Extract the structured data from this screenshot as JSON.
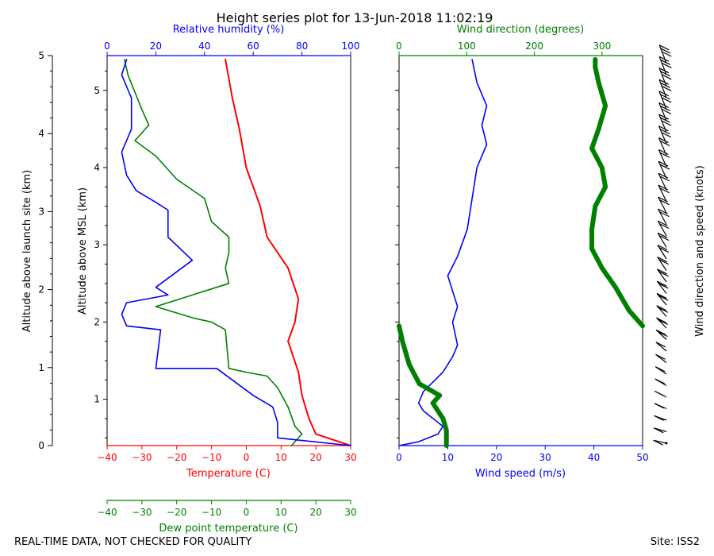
{
  "title": "Height series plot for 13-Jun-2018 11:02:19",
  "footer_left": "REAL-TIME DATA, NOT CHECKED FOR QUALITY",
  "footer_right": "Site: ISS2",
  "colors": {
    "temperature": "#ff0000",
    "rh": "#0000ff",
    "dewpoint": "#008000",
    "wspd": "#0000ff",
    "wdir": "#008000",
    "axis": "#000000"
  },
  "chart_data": [
    {
      "type": "line",
      "name": "thermo-panel",
      "ylabel_outer": "Altitude above launch site (km)",
      "ylabel_inner": "Altitude above MSL (km)",
      "outer_yticks": [
        "0",
        "1",
        "2",
        "3",
        "4",
        "5"
      ],
      "inner_yticks": [
        "1",
        "2",
        "3",
        "4",
        "5"
      ],
      "ylim_msl": [
        0.4,
        5.45
      ],
      "x_bottom": {
        "label": "Temperature (C)",
        "range": [
          -40,
          30
        ],
        "ticks": [
          "−40",
          "−30",
          "−20",
          "−10",
          "0",
          "10",
          "20",
          "30"
        ]
      },
      "x_bottom2": {
        "label": "Dew point temperature (C)",
        "range": [
          -40,
          30
        ],
        "ticks": [
          "−40",
          "−30",
          "−20",
          "−10",
          "0",
          "10",
          "20",
          "30"
        ]
      },
      "x_top": {
        "label": "Relative humidity (%)",
        "range": [
          0,
          100
        ],
        "ticks": [
          "0",
          "20",
          "40",
          "60",
          "80",
          "100"
        ]
      },
      "series": [
        {
          "name": "Temperature",
          "axis": "x_bottom",
          "color": "#ff0000",
          "points": [
            [
              30,
              0.4
            ],
            [
              20,
              0.55
            ],
            [
              18,
              0.75
            ],
            [
              16,
              1.05
            ],
            [
              15,
              1.35
            ],
            [
              12,
              1.75
            ],
            [
              14,
              2.0
            ],
            [
              15,
              2.3
            ],
            [
              12,
              2.7
            ],
            [
              6,
              3.1
            ],
            [
              4,
              3.5
            ],
            [
              0,
              4.0
            ],
            [
              -2,
              4.5
            ],
            [
              -4,
              4.9
            ],
            [
              -6,
              5.4
            ]
          ]
        },
        {
          "name": "Dew point",
          "axis": "x_bottom2",
          "color": "#008000",
          "points": [
            [
              13,
              0.4
            ],
            [
              16,
              0.55
            ],
            [
              14,
              0.65
            ],
            [
              12,
              0.9
            ],
            [
              9,
              1.15
            ],
            [
              6,
              1.3
            ],
            [
              0,
              1.35
            ],
            [
              -5,
              1.4
            ],
            [
              -6,
              1.9
            ],
            [
              -10,
              2.0
            ],
            [
              -15,
              2.05
            ],
            [
              -26,
              2.2
            ],
            [
              -5,
              2.5
            ],
            [
              -6,
              2.7
            ],
            [
              -5,
              2.9
            ],
            [
              -5,
              3.1
            ],
            [
              -10,
              3.3
            ],
            [
              -12,
              3.6
            ],
            [
              -20,
              3.85
            ],
            [
              -26,
              4.15
            ],
            [
              -32,
              4.35
            ],
            [
              -28,
              4.55
            ],
            [
              -30,
              4.75
            ],
            [
              -34,
              5.2
            ],
            [
              -35,
              5.4
            ]
          ]
        },
        {
          "name": "Relative humidity",
          "axis": "x_top",
          "color": "#0000ff",
          "points": [
            [
              100,
              0.4
            ],
            [
              70,
              0.5
            ],
            [
              70,
              0.7
            ],
            [
              68,
              0.9
            ],
            [
              60,
              1.05
            ],
            [
              45,
              1.4
            ],
            [
              20,
              1.4
            ],
            [
              22,
              1.9
            ],
            [
              8,
              1.95
            ],
            [
              6,
              2.1
            ],
            [
              8,
              2.25
            ],
            [
              25,
              2.35
            ],
            [
              20,
              2.45
            ],
            [
              35,
              2.8
            ],
            [
              25,
              3.1
            ],
            [
              25,
              3.45
            ],
            [
              20,
              3.55
            ],
            [
              12,
              3.7
            ],
            [
              8,
              3.9
            ],
            [
              6,
              4.2
            ],
            [
              10,
              4.5
            ],
            [
              10,
              4.9
            ],
            [
              6,
              5.2
            ],
            [
              8,
              5.4
            ]
          ]
        }
      ]
    },
    {
      "type": "line",
      "name": "wind-panel",
      "x_bottom": {
        "label": "Wind speed (m/s)",
        "range": [
          0,
          50
        ],
        "ticks": [
          "0",
          "10",
          "20",
          "30",
          "40",
          "50"
        ]
      },
      "x_top": {
        "label": "Wind direction (degrees)",
        "range": [
          0,
          360
        ],
        "ticks": [
          "0",
          "100",
          "200",
          "300"
        ]
      },
      "series": [
        {
          "name": "Wind speed",
          "axis": "x_bottom",
          "color": "#0000ff",
          "points": [
            [
              0,
              0.4
            ],
            [
              4,
              0.45
            ],
            [
              8,
              0.55
            ],
            [
              9,
              0.65
            ],
            [
              7,
              0.75
            ],
            [
              5,
              0.85
            ],
            [
              4,
              0.95
            ],
            [
              5,
              1.1
            ],
            [
              9,
              1.35
            ],
            [
              11,
              1.55
            ],
            [
              12,
              1.7
            ],
            [
              11,
              2.0
            ],
            [
              12,
              2.2
            ],
            [
              11,
              2.4
            ],
            [
              10,
              2.6
            ],
            [
              12,
              2.85
            ],
            [
              14,
              3.2
            ],
            [
              15,
              3.6
            ],
            [
              16,
              4.0
            ],
            [
              18,
              4.3
            ],
            [
              17,
              4.55
            ],
            [
              18,
              4.8
            ],
            [
              16,
              5.1
            ],
            [
              15,
              5.4
            ]
          ]
        },
        {
          "name": "Wind direction",
          "axis": "x_top",
          "color": "#008000",
          "points": [
            [
              70,
              0.4
            ],
            [
              70,
              0.6
            ],
            [
              65,
              0.75
            ],
            [
              50,
              0.95
            ],
            [
              60,
              1.05
            ],
            [
              30,
              1.2
            ],
            [
              15,
              1.45
            ],
            [
              5,
              1.75
            ],
            [
              0,
              1.95
            ],
            [
              360,
              1.95
            ],
            [
              340,
              2.15
            ],
            [
              320,
              2.45
            ],
            [
              300,
              2.7
            ],
            [
              285,
              2.95
            ],
            [
              285,
              3.2
            ],
            [
              290,
              3.5
            ],
            [
              305,
              3.75
            ],
            [
              300,
              4.0
            ],
            [
              285,
              4.25
            ],
            [
              295,
              4.5
            ],
            [
              305,
              4.8
            ],
            [
              295,
              5.1
            ],
            [
              290,
              5.3
            ],
            [
              290,
              5.4
            ]
          ]
        }
      ]
    },
    {
      "type": "barbs",
      "name": "wind-barbs",
      "ylabel": "Wind direction and speed (knots)"
    }
  ]
}
